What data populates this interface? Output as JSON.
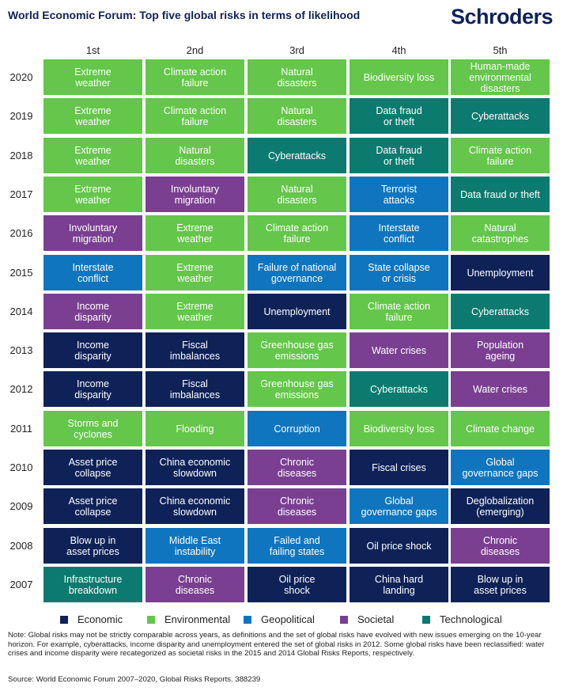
{
  "title": "World Economic Forum: Top five global risks in terms of likelihood",
  "logo_text": "Schroders",
  "chart_data": {
    "type": "table",
    "columns": [
      "1st",
      "2nd",
      "3rd",
      "4th",
      "5th"
    ],
    "category_colors": {
      "Economic": "#0e2258",
      "Environmental": "#64c64a",
      "Geopolitical": "#0f75bf",
      "Societal": "#7a3f91",
      "Technological": "#0c7a6f"
    },
    "legend": [
      "Economic",
      "Environmental",
      "Geopolitical",
      "Societal",
      "Technological"
    ],
    "rows": [
      {
        "year": "2020",
        "cells": [
          {
            "text": "Extreme\nweather",
            "category": "Environmental"
          },
          {
            "text": "Climate action\nfailure",
            "category": "Environmental"
          },
          {
            "text": "Natural\ndisasters",
            "category": "Environmental"
          },
          {
            "text": "Biodiversity loss",
            "category": "Environmental"
          },
          {
            "text": "Human-made\nenvironmental\ndisasters",
            "category": "Environmental"
          }
        ]
      },
      {
        "year": "2019",
        "cells": [
          {
            "text": "Extreme\nweather",
            "category": "Environmental"
          },
          {
            "text": "Climate action\nfailure",
            "category": "Environmental"
          },
          {
            "text": "Natural\ndisasters",
            "category": "Environmental"
          },
          {
            "text": "Data  fraud\nor theft",
            "category": "Technological"
          },
          {
            "text": "Cyberattacks",
            "category": "Technological"
          }
        ]
      },
      {
        "year": "2018",
        "cells": [
          {
            "text": "Extreme\nweather",
            "category": "Environmental"
          },
          {
            "text": "Natural\ndisasters",
            "category": "Environmental"
          },
          {
            "text": "Cyberattacks",
            "category": "Technological"
          },
          {
            "text": "Data fraud\nor theft",
            "category": "Technological"
          },
          {
            "text": "Climate action\nfailure",
            "category": "Environmental"
          }
        ]
      },
      {
        "year": "2017",
        "cells": [
          {
            "text": "Extreme\nweather",
            "category": "Environmental"
          },
          {
            "text": "Involuntary\nmigration",
            "category": "Societal"
          },
          {
            "text": "Natural\ndisasters",
            "category": "Environmental"
          },
          {
            "text": "Terrorist\nattacks",
            "category": "Geopolitical"
          },
          {
            "text": "Data fraud or theft",
            "category": "Technological"
          }
        ]
      },
      {
        "year": "2016",
        "cells": [
          {
            "text": "Involuntary\nmigration",
            "category": "Societal"
          },
          {
            "text": "Extreme\nweather",
            "category": "Environmental"
          },
          {
            "text": "Climate action\nfailure",
            "category": "Environmental"
          },
          {
            "text": "Interstate\nconflict",
            "category": "Geopolitical"
          },
          {
            "text": "Natural\ncatastrophes",
            "category": "Environmental"
          }
        ]
      },
      {
        "year": "2015",
        "cells": [
          {
            "text": "Interstate\nconflict",
            "category": "Geopolitical"
          },
          {
            "text": "Extreme\nweather",
            "category": "Environmental"
          },
          {
            "text": "Failure of national\ngovernance",
            "category": "Geopolitical"
          },
          {
            "text": "State collapse\nor crisis",
            "category": "Geopolitical"
          },
          {
            "text": "Unemployment",
            "category": "Economic"
          }
        ]
      },
      {
        "year": "2014",
        "cells": [
          {
            "text": "Income\ndisparity",
            "category": "Societal"
          },
          {
            "text": "Extreme\nweather",
            "category": "Environmental"
          },
          {
            "text": "Unemployment",
            "category": "Economic"
          },
          {
            "text": "Climate action\nfailure",
            "category": "Environmental"
          },
          {
            "text": "Cyberattacks",
            "category": "Technological"
          }
        ]
      },
      {
        "year": "2013",
        "cells": [
          {
            "text": "Income\ndisparity",
            "category": "Economic"
          },
          {
            "text": "Fiscal\nimbalances",
            "category": "Economic"
          },
          {
            "text": "Greenhouse gas\nemissions",
            "category": "Environmental"
          },
          {
            "text": "Water crises",
            "category": "Societal"
          },
          {
            "text": "Population\nageing",
            "category": "Societal"
          }
        ]
      },
      {
        "year": "2012",
        "cells": [
          {
            "text": "Income\ndisparity",
            "category": "Economic"
          },
          {
            "text": "Fiscal\nimbalances",
            "category": "Economic"
          },
          {
            "text": "Greenhouse gas\nemissions",
            "category": "Environmental"
          },
          {
            "text": "Cyberattacks",
            "category": "Technological"
          },
          {
            "text": "Water crises",
            "category": "Societal"
          }
        ]
      },
      {
        "year": "2011",
        "cells": [
          {
            "text": "Storms and\ncyclones",
            "category": "Environmental"
          },
          {
            "text": "Flooding",
            "category": "Environmental"
          },
          {
            "text": "Corruption",
            "category": "Geopolitical"
          },
          {
            "text": "Biodiversity loss",
            "category": "Environmental"
          },
          {
            "text": "Climate change",
            "category": "Environmental"
          }
        ]
      },
      {
        "year": "2010",
        "cells": [
          {
            "text": "Asset price\ncollapse",
            "category": "Economic"
          },
          {
            "text": "China economic\nslowdown",
            "category": "Economic"
          },
          {
            "text": "Chronic\ndiseases",
            "category": "Societal"
          },
          {
            "text": "Fiscal crises",
            "category": "Economic"
          },
          {
            "text": "Global\ngovernance gaps",
            "category": "Geopolitical"
          }
        ]
      },
      {
        "year": "2009",
        "cells": [
          {
            "text": "Asset price\ncollapse",
            "category": "Economic"
          },
          {
            "text": "China economic\nslowdown",
            "category": "Economic"
          },
          {
            "text": "Chronic\ndiseases",
            "category": "Societal"
          },
          {
            "text": "Global\ngovernance gaps",
            "category": "Geopolitical"
          },
          {
            "text": "Deglobalization\n(emerging)",
            "category": "Economic"
          }
        ]
      },
      {
        "year": "2008",
        "cells": [
          {
            "text": "Blow up in\nasset prices",
            "category": "Economic"
          },
          {
            "text": "Middle East\ninstability",
            "category": "Geopolitical"
          },
          {
            "text": "Failed and\nfailing states",
            "category": "Geopolitical"
          },
          {
            "text": "Oil price shock",
            "category": "Economic"
          },
          {
            "text": "Chronic\ndiseases",
            "category": "Societal"
          }
        ]
      },
      {
        "year": "2007",
        "cells": [
          {
            "text": "Infrastructure\nbreakdown",
            "category": "Technological"
          },
          {
            "text": "Chronic\ndiseases",
            "category": "Societal"
          },
          {
            "text": "Oil price\nshock",
            "category": "Economic"
          },
          {
            "text": "China hard\nlanding",
            "category": "Economic"
          },
          {
            "text": "Blow up in\nasset prices",
            "category": "Economic"
          }
        ]
      }
    ]
  },
  "note": "Note: Global risks may not be strictly comparable across years, as definitions and the set of global risks have evolved with new issues emerging on the 10-year horizon. For example, cyberattacks, income disparity and unemployment entered the set of global risks in 2012. Some global risks have been reclassified: water crises and income disparity were recategorized as societal risks in the 2015 and 2014 Global Risks Reports, respectively.",
  "source": "Source: World Economic Forum 2007–2020, Global Risks Reports. 388239"
}
